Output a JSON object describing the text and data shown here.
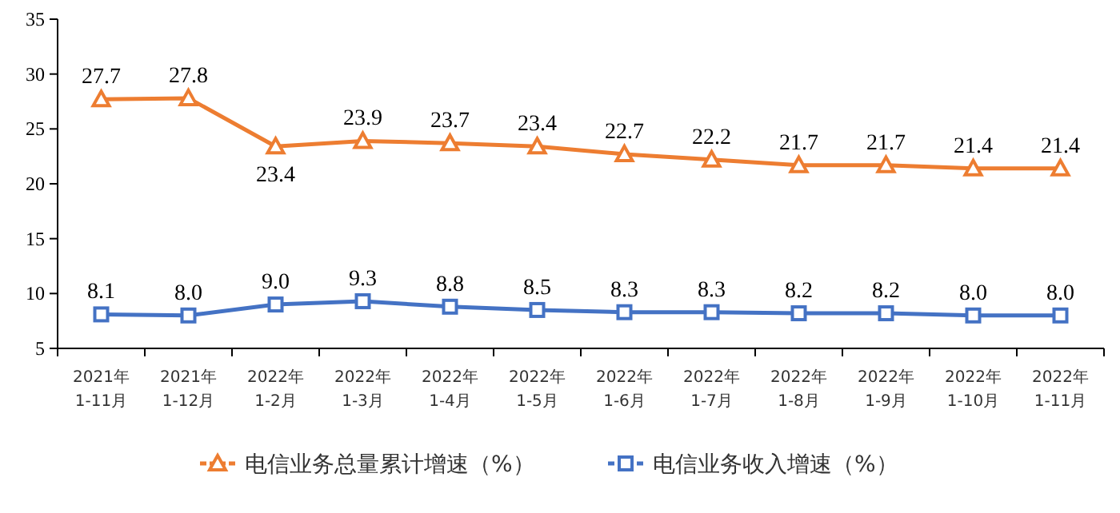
{
  "chart_data": {
    "type": "line",
    "categories": [
      "2021年\n1-11月",
      "2021年\n1-12月",
      "2022年\n1-2月",
      "2022年\n1-3月",
      "2022年\n1-4月",
      "2022年\n1-5月",
      "2022年\n1-6月",
      "2022年\n1-7月",
      "2022年\n1-8月",
      "2022年\n1-9月",
      "2022年\n1-10月",
      "2022年\n1-11月"
    ],
    "series": [
      {
        "name": "电信业务总量累计增速（%）",
        "color": "#ed7d31",
        "marker": "triangle",
        "values": [
          27.7,
          27.8,
          23.4,
          23.9,
          23.7,
          23.4,
          22.7,
          22.2,
          21.7,
          21.7,
          21.4,
          21.4
        ],
        "value_labels": [
          "27.7",
          "27.8",
          "23.4",
          "23.9",
          "23.7",
          "23.4",
          "22.7",
          "22.2",
          "21.7",
          "21.7",
          "21.4",
          "21.4"
        ]
      },
      {
        "name": "电信业务收入增速（%）",
        "color": "#4472c4",
        "marker": "square",
        "values": [
          8.1,
          8.0,
          9.0,
          9.3,
          8.8,
          8.5,
          8.3,
          8.3,
          8.2,
          8.2,
          8.0,
          8.0
        ],
        "value_labels": [
          "8.1",
          "8.0",
          "9.0",
          "9.3",
          "8.8",
          "8.5",
          "8.3",
          "8.3",
          "8.2",
          "8.2",
          "8.0",
          "8.0"
        ]
      }
    ],
    "ylim": [
      5,
      35
    ],
    "yticks": [
      5,
      10,
      15,
      20,
      25,
      30,
      35
    ],
    "grid": false,
    "legend": "bottom",
    "line_style": "solid"
  }
}
